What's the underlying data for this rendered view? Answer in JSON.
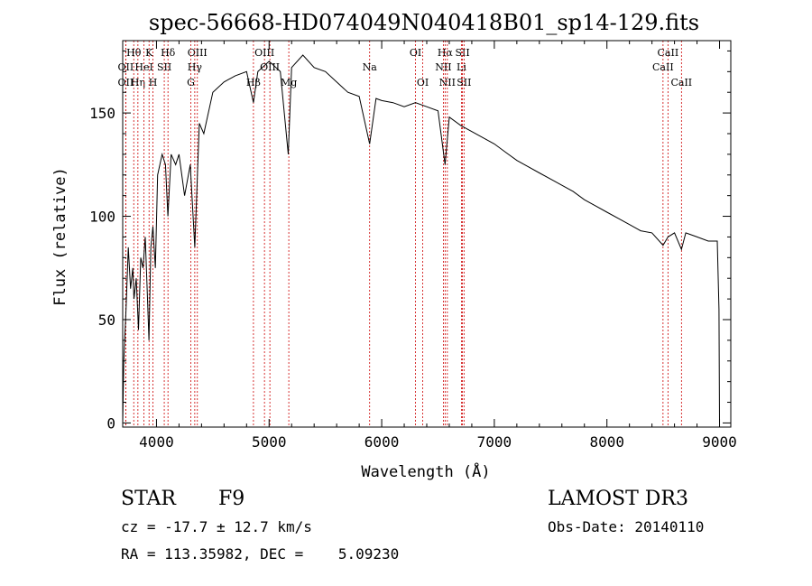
{
  "chart_data": {
    "type": "line",
    "title": "spec-56668-HD074049N040418B01_sp14-129.fits",
    "xlabel": "Wavelength (Å)",
    "ylabel": "Flux (relative)",
    "xlim": [
      3700,
      9100
    ],
    "ylim": [
      -2,
      185
    ],
    "xticks": [
      4000,
      5000,
      6000,
      7000,
      8000,
      9000
    ],
    "yticks": [
      0,
      50,
      100,
      150
    ],
    "series": [
      {
        "name": "spectrum",
        "x": [
          3700,
          3710,
          3730,
          3750,
          3770,
          3790,
          3800,
          3820,
          3840,
          3860,
          3880,
          3900,
          3920,
          3933,
          3950,
          3968,
          3990,
          4010,
          4050,
          4080,
          4101,
          4130,
          4170,
          4200,
          4250,
          4300,
          4340,
          4380,
          4420,
          4500,
          4600,
          4700,
          4800,
          4861,
          4900,
          5000,
          5100,
          5170,
          5200,
          5300,
          5400,
          5500,
          5600,
          5700,
          5800,
          5893,
          5950,
          6000,
          6100,
          6200,
          6300,
          6400,
          6500,
          6563,
          6600,
          6700,
          6800,
          6900,
          7000,
          7100,
          7200,
          7300,
          7400,
          7500,
          7600,
          7700,
          7800,
          7900,
          8000,
          8100,
          8200,
          8300,
          8400,
          8498,
          8542,
          8600,
          8662,
          8700,
          8800,
          8900,
          8980,
          8995,
          9000
        ],
        "y": [
          0,
          30,
          55,
          85,
          65,
          75,
          60,
          70,
          45,
          80,
          75,
          90,
          60,
          40,
          85,
          95,
          75,
          120,
          130,
          125,
          100,
          130,
          125,
          130,
          110,
          125,
          85,
          145,
          140,
          160,
          165,
          168,
          170,
          155,
          170,
          175,
          170,
          130,
          172,
          178,
          172,
          170,
          165,
          160,
          158,
          135,
          157,
          156,
          155,
          153,
          155,
          153,
          151,
          125,
          148,
          144,
          141,
          138,
          135,
          131,
          127,
          124,
          121,
          118,
          115,
          112,
          108,
          105,
          102,
          99,
          96,
          93,
          92,
          86,
          90,
          92,
          84,
          92,
          90,
          88,
          88,
          55,
          0
        ]
      }
    ],
    "line_markers": [
      {
        "label": "Hθ",
        "x": 3798,
        "row": 1
      },
      {
        "label": "OII",
        "x": 3727,
        "row": 2
      },
      {
        "label": "OII",
        "x": 3727,
        "row": 3
      },
      {
        "label": "Hη",
        "x": 3835,
        "row": 3
      },
      {
        "label": "K",
        "x": 3934,
        "row": 1
      },
      {
        "label": "HeI",
        "x": 3889,
        "row": 2
      },
      {
        "label": "H",
        "x": 3969,
        "row": 3
      },
      {
        "label": "SII",
        "x": 4069,
        "row": 2
      },
      {
        "label": "Hδ",
        "x": 4102,
        "row": 1
      },
      {
        "label": "OIII",
        "x": 4363,
        "row": 1
      },
      {
        "label": "Hγ",
        "x": 4340,
        "row": 2
      },
      {
        "label": "G",
        "x": 4305,
        "row": 3
      },
      {
        "label": "OIII",
        "x": 4959,
        "row": 1
      },
      {
        "label": "Hβ",
        "x": 4861,
        "row": 3
      },
      {
        "label": "OIII",
        "x": 5007,
        "row": 2
      },
      {
        "label": "Mg",
        "x": 5175,
        "row": 3
      },
      {
        "label": "Na",
        "x": 5893,
        "row": 2
      },
      {
        "label": "OI",
        "x": 6300,
        "row": 1
      },
      {
        "label": "OI",
        "x": 6364,
        "row": 3
      },
      {
        "label": "Hα",
        "x": 6563,
        "row": 1
      },
      {
        "label": "NII",
        "x": 6548,
        "row": 2
      },
      {
        "label": "NII",
        "x": 6583,
        "row": 3
      },
      {
        "label": "SII",
        "x": 6717,
        "row": 1
      },
      {
        "label": "Li",
        "x": 6708,
        "row": 2
      },
      {
        "label": "SII",
        "x": 6731,
        "row": 3
      },
      {
        "label": "CaII",
        "x": 8542,
        "row": 1
      },
      {
        "label": "CaII",
        "x": 8498,
        "row": 2
      },
      {
        "label": "CaII",
        "x": 8662,
        "row": 3
      }
    ]
  },
  "info": {
    "object_class": "STAR",
    "subclass": "F9",
    "survey": "LAMOST DR3",
    "redshift": "cz = -17.7 ± 12.7 km/s",
    "obs_date": "Obs-Date: 20140110",
    "coords": "RA = 113.35982, DEC =    5.09230"
  }
}
